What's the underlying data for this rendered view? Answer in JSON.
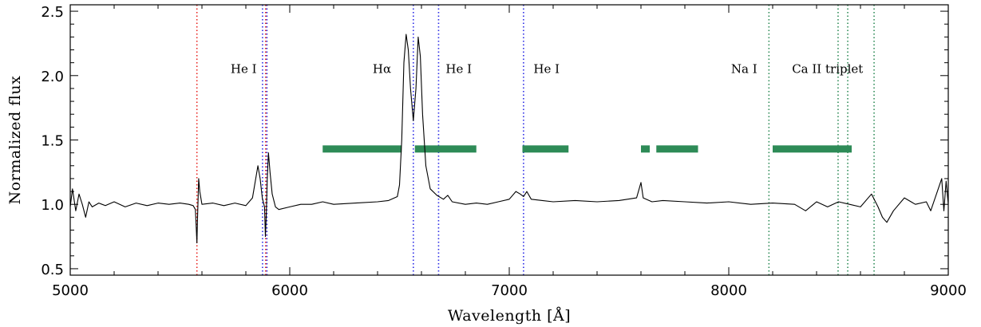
{
  "chart_data": {
    "type": "line",
    "title": "",
    "xlabel": "Wavelength [Å]",
    "ylabel": "Normalized flux",
    "xlim": [
      5000,
      9000
    ],
    "ylim": [
      0.45,
      2.55
    ],
    "x_ticks": [
      5000,
      6000,
      7000,
      8000,
      9000
    ],
    "x_tick_labels": [
      "5000",
      "6000",
      "7000",
      "8000",
      "9000"
    ],
    "y_ticks": [
      0.5,
      1.0,
      1.5,
      2.0,
      2.5
    ],
    "y_tick_labels": [
      "0.5",
      "1.0",
      "1.5",
      "2.0",
      "2.5"
    ],
    "grid": false,
    "line_color": "#000000",
    "series": [
      {
        "values": [
          [
            5000,
            0.98
          ],
          [
            5010,
            1.12
          ],
          [
            5025,
            0.95
          ],
          [
            5040,
            1.08
          ],
          [
            5055,
            1.0
          ],
          [
            5070,
            0.9
          ],
          [
            5085,
            1.02
          ],
          [
            5100,
            0.98
          ],
          [
            5130,
            1.01
          ],
          [
            5160,
            0.99
          ],
          [
            5200,
            1.02
          ],
          [
            5250,
            0.98
          ],
          [
            5300,
            1.01
          ],
          [
            5350,
            0.99
          ],
          [
            5400,
            1.01
          ],
          [
            5450,
            1.0
          ],
          [
            5500,
            1.01
          ],
          [
            5540,
            1.0
          ],
          [
            5560,
            0.99
          ],
          [
            5570,
            0.96
          ],
          [
            5577,
            0.7
          ],
          [
            5580,
            0.9
          ],
          [
            5585,
            1.2
          ],
          [
            5590,
            1.1
          ],
          [
            5600,
            1.0
          ],
          [
            5650,
            1.01
          ],
          [
            5700,
            0.99
          ],
          [
            5750,
            1.01
          ],
          [
            5800,
            0.99
          ],
          [
            5830,
            1.05
          ],
          [
            5845,
            1.2
          ],
          [
            5855,
            1.3
          ],
          [
            5865,
            1.2
          ],
          [
            5875,
            1.05
          ],
          [
            5885,
            0.98
          ],
          [
            5889,
            0.75
          ],
          [
            5893,
            0.92
          ],
          [
            5897,
            1.18
          ],
          [
            5903,
            1.4
          ],
          [
            5910,
            1.25
          ],
          [
            5920,
            1.08
          ],
          [
            5935,
            0.98
          ],
          [
            5950,
            0.96
          ],
          [
            6000,
            0.98
          ],
          [
            6050,
            1.0
          ],
          [
            6100,
            1.0
          ],
          [
            6150,
            1.02
          ],
          [
            6200,
            1.0
          ],
          [
            6300,
            1.01
          ],
          [
            6400,
            1.02
          ],
          [
            6450,
            1.03
          ],
          [
            6490,
            1.06
          ],
          [
            6500,
            1.15
          ],
          [
            6510,
            1.5
          ],
          [
            6520,
            2.1
          ],
          [
            6530,
            2.32
          ],
          [
            6540,
            2.2
          ],
          [
            6550,
            1.9
          ],
          [
            6563,
            1.65
          ],
          [
            6575,
            1.9
          ],
          [
            6585,
            2.3
          ],
          [
            6595,
            2.15
          ],
          [
            6605,
            1.7
          ],
          [
            6620,
            1.3
          ],
          [
            6640,
            1.12
          ],
          [
            6670,
            1.07
          ],
          [
            6700,
            1.04
          ],
          [
            6720,
            1.07
          ],
          [
            6740,
            1.02
          ],
          [
            6800,
            1.0
          ],
          [
            6850,
            1.01
          ],
          [
            6900,
            1.0
          ],
          [
            6950,
            1.02
          ],
          [
            7000,
            1.04
          ],
          [
            7030,
            1.1
          ],
          [
            7050,
            1.08
          ],
          [
            7065,
            1.06
          ],
          [
            7080,
            1.1
          ],
          [
            7100,
            1.04
          ],
          [
            7150,
            1.03
          ],
          [
            7200,
            1.02
          ],
          [
            7300,
            1.03
          ],
          [
            7400,
            1.02
          ],
          [
            7500,
            1.03
          ],
          [
            7580,
            1.05
          ],
          [
            7600,
            1.17
          ],
          [
            7610,
            1.05
          ],
          [
            7650,
            1.02
          ],
          [
            7700,
            1.03
          ],
          [
            7800,
            1.02
          ],
          [
            7900,
            1.01
          ],
          [
            8000,
            1.02
          ],
          [
            8100,
            1.0
          ],
          [
            8200,
            1.01
          ],
          [
            8300,
            1.0
          ],
          [
            8350,
            0.95
          ],
          [
            8400,
            1.02
          ],
          [
            8450,
            0.98
          ],
          [
            8500,
            1.02
          ],
          [
            8550,
            1.0
          ],
          [
            8600,
            0.98
          ],
          [
            8650,
            1.08
          ],
          [
            8680,
            0.98
          ],
          [
            8700,
            0.9
          ],
          [
            8720,
            0.86
          ],
          [
            8750,
            0.95
          ],
          [
            8800,
            1.05
          ],
          [
            8850,
            1.0
          ],
          [
            8900,
            1.02
          ],
          [
            8920,
            0.95
          ],
          [
            8950,
            1.1
          ],
          [
            8970,
            1.2
          ],
          [
            8980,
            0.95
          ],
          [
            8990,
            1.18
          ],
          [
            9000,
            1.0
          ]
        ]
      }
    ],
    "vlines": [
      {
        "x": 5577,
        "color": "#e8231f"
      },
      {
        "x": 5876,
        "color": "#2929e6"
      },
      {
        "x": 5890,
        "color": "#e8231f"
      },
      {
        "x": 5896,
        "color": "#2929e6"
      },
      {
        "x": 6563,
        "color": "#2929e6"
      },
      {
        "x": 6678,
        "color": "#2929e6"
      },
      {
        "x": 7065,
        "color": "#2929e6"
      },
      {
        "x": 8183,
        "color": "#2e8b57"
      },
      {
        "x": 8498,
        "color": "#2e8b57"
      },
      {
        "x": 8542,
        "color": "#2e8b57"
      },
      {
        "x": 8662,
        "color": "#2e8b57"
      }
    ],
    "bands": [
      {
        "x0": 6150,
        "x1": 6510,
        "y": 1.43
      },
      {
        "x0": 6570,
        "x1": 6850,
        "y": 1.43
      },
      {
        "x0": 7060,
        "x1": 7270,
        "y": 1.43
      },
      {
        "x0": 7600,
        "x1": 7640,
        "y": 1.43
      },
      {
        "x0": 7670,
        "x1": 7860,
        "y": 1.43
      },
      {
        "x0": 8200,
        "x1": 8560,
        "y": 1.43
      }
    ],
    "band_color": "#2e8b57",
    "annotations": [
      {
        "text": "He I",
        "x": 5790,
        "y": 2.02
      },
      {
        "text": "Hα",
        "x": 6420,
        "y": 2.02
      },
      {
        "text": "He I",
        "x": 6770,
        "y": 2.02
      },
      {
        "text": "He I",
        "x": 7170,
        "y": 2.02
      },
      {
        "text": "Na I",
        "x": 8070,
        "y": 2.02
      },
      {
        "text": "Ca II triplet",
        "x": 8450,
        "y": 2.02
      }
    ]
  }
}
